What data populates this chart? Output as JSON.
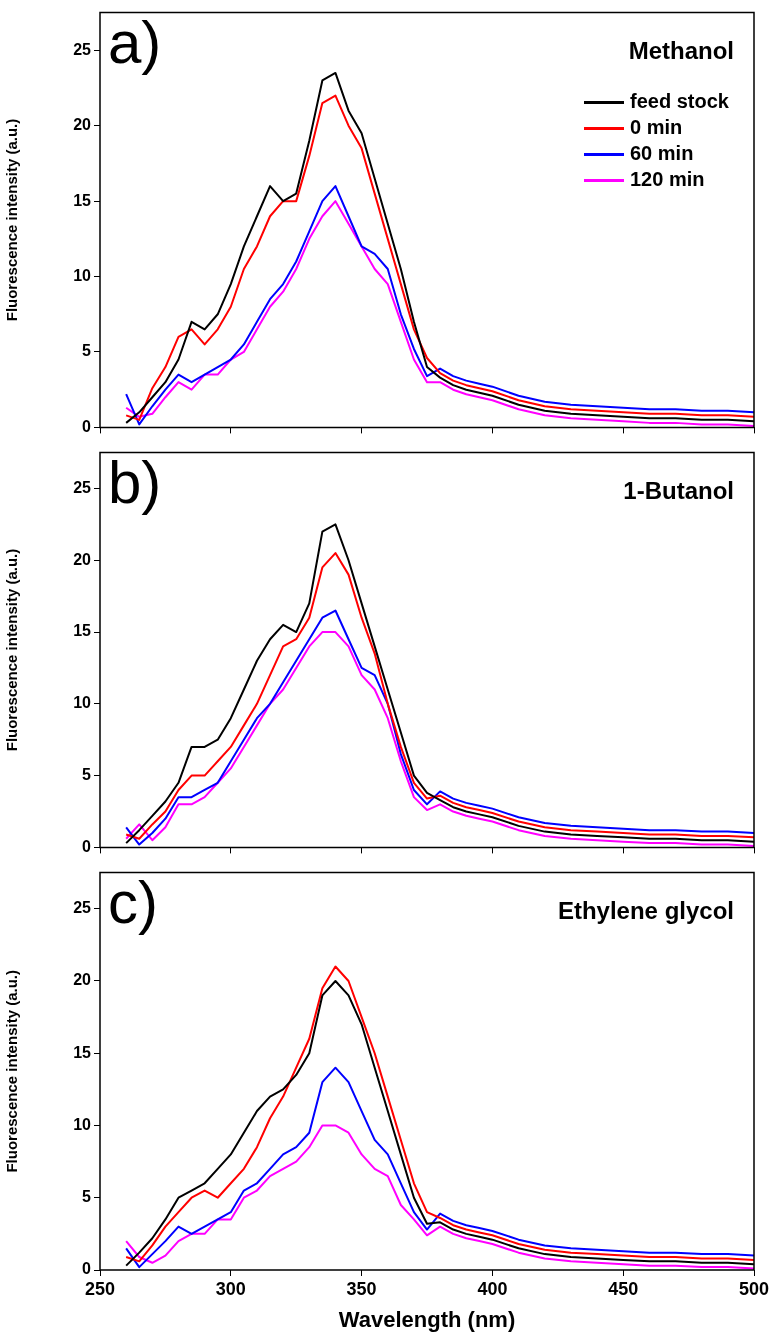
{
  "chart_data": [
    {
      "type": "line",
      "annotations": [
        "a)",
        "Methanol"
      ],
      "ylabel": "Fluorescence intensity (a.u.)",
      "legend": "top right",
      "tick_labels": "y",
      "line_style": "solid",
      "x": [
        260,
        265,
        270,
        275,
        280,
        285,
        290,
        295,
        300,
        305,
        310,
        315,
        320,
        325,
        330,
        335,
        340,
        345,
        350,
        355,
        360,
        365,
        370,
        375,
        380,
        385,
        390,
        395,
        400,
        410,
        420,
        430,
        440,
        450,
        460,
        470,
        480,
        490,
        500
      ],
      "xlim": [
        250,
        500
      ],
      "xticks": [
        250,
        300,
        350,
        400,
        450,
        500
      ],
      "ylim": [
        0,
        27.5
      ],
      "yticks": [
        0,
        5,
        10,
        15,
        20,
        25
      ],
      "series": [
        {
          "name": "feed stock",
          "color": "#000000",
          "values": [
            0.3,
            1,
            2,
            3,
            4.5,
            7,
            6.5,
            7.5,
            9.5,
            12,
            14,
            16,
            15,
            15.5,
            19,
            23,
            23.5,
            21,
            19.5,
            16.5,
            13.5,
            10.5,
            7,
            4,
            3.3,
            2.8,
            2.5,
            2.3,
            2.1,
            1.5,
            1.1,
            0.9,
            0.8,
            0.7,
            0.6,
            0.6,
            0.5,
            0.5,
            0.4
          ]
        },
        {
          "name": "0 min",
          "color": "#ff0000",
          "values": [
            0.8,
            0.5,
            2.6,
            4,
            6,
            6.5,
            5.5,
            6.5,
            8,
            10.5,
            12,
            14,
            15,
            15,
            18,
            21.5,
            22,
            20,
            18.5,
            15.5,
            12.5,
            9.5,
            6.5,
            4.6,
            3.6,
            3.1,
            2.8,
            2.6,
            2.4,
            1.8,
            1.4,
            1.2,
            1.1,
            1,
            0.9,
            0.9,
            0.8,
            0.8,
            0.7
          ]
        },
        {
          "name": "60 min",
          "color": "#0000ff",
          "values": [
            2.2,
            0.2,
            1.4,
            2.5,
            3.5,
            3,
            3.5,
            4,
            4.5,
            5.5,
            7,
            8.5,
            9.5,
            11,
            13,
            15,
            16,
            14,
            12,
            11.5,
            10.5,
            7.5,
            5.2,
            3.4,
            3.9,
            3.4,
            3.1,
            2.9,
            2.7,
            2.1,
            1.7,
            1.5,
            1.4,
            1.3,
            1.2,
            1.2,
            1.1,
            1.1,
            1
          ]
        },
        {
          "name": "120 min",
          "color": "#ff00ff",
          "values": [
            1.3,
            0.7,
            0.9,
            2,
            3,
            2.5,
            3.5,
            3.5,
            4.5,
            5,
            6.5,
            8,
            9,
            10.5,
            12.5,
            14,
            15,
            13.5,
            12,
            10.5,
            9.5,
            7,
            4.5,
            3,
            3,
            2.5,
            2.2,
            2,
            1.8,
            1.2,
            0.8,
            0.6,
            0.5,
            0.4,
            0.3,
            0.3,
            0.2,
            0.2,
            0.1
          ]
        }
      ]
    },
    {
      "type": "line",
      "annotations": [
        "b)",
        "1-Butanol"
      ],
      "ylabel": "Fluorescence intensity (a.u.)",
      "tick_labels": "y",
      "line_style": "solid",
      "x": [
        260,
        265,
        270,
        275,
        280,
        285,
        290,
        295,
        300,
        305,
        310,
        315,
        320,
        325,
        330,
        335,
        340,
        345,
        350,
        355,
        360,
        365,
        370,
        375,
        380,
        385,
        390,
        395,
        400,
        410,
        420,
        430,
        440,
        450,
        460,
        470,
        480,
        490,
        500
      ],
      "xlim": [
        250,
        500
      ],
      "xticks": [
        250,
        300,
        350,
        400,
        450,
        500
      ],
      "ylim": [
        0,
        27.5
      ],
      "yticks": [
        0,
        5,
        10,
        15,
        20,
        25
      ],
      "series": [
        {
          "color": "#000000",
          "values": [
            0.3,
            1.2,
            2.2,
            3.2,
            4.5,
            7,
            7,
            7.5,
            9,
            11,
            13,
            14.5,
            15.5,
            15,
            17,
            22,
            22.5,
            20,
            17,
            14,
            11,
            8,
            5,
            3.8,
            3.3,
            2.8,
            2.5,
            2.3,
            2.1,
            1.5,
            1.1,
            0.9,
            0.8,
            0.7,
            0.6,
            0.6,
            0.5,
            0.5,
            0.4
          ]
        },
        {
          "color": "#ff0000",
          "values": [
            0.9,
            0.6,
            1.6,
            2.5,
            4,
            5,
            5,
            6,
            7,
            8.5,
            10,
            12,
            14,
            14.5,
            16,
            19.5,
            20.5,
            19,
            16,
            13.5,
            10,
            7,
            4.5,
            3.4,
            3.6,
            3.1,
            2.8,
            2.6,
            2.4,
            1.8,
            1.4,
            1.2,
            1.1,
            1,
            0.9,
            0.9,
            0.8,
            0.8,
            0.7
          ]
        },
        {
          "color": "#0000ff",
          "values": [
            1.4,
            0.2,
            1,
            2,
            3.5,
            3.5,
            4,
            4.5,
            6,
            7.5,
            9,
            10,
            11.5,
            13,
            14.5,
            16,
            16.5,
            14.5,
            12.5,
            12,
            10,
            6.5,
            4,
            3,
            3.9,
            3.4,
            3.1,
            2.9,
            2.7,
            2.1,
            1.7,
            1.5,
            1.4,
            1.3,
            1.2,
            1.2,
            1.1,
            1.1,
            1
          ]
        },
        {
          "color": "#ff00ff",
          "values": [
            0.6,
            1.6,
            0.5,
            1.4,
            3,
            3,
            3.5,
            4.5,
            5.5,
            7,
            8.5,
            10,
            11,
            12.5,
            14,
            15,
            15,
            14,
            12,
            11,
            9,
            6,
            3.5,
            2.6,
            3,
            2.5,
            2.2,
            2,
            1.8,
            1.2,
            0.8,
            0.6,
            0.5,
            0.4,
            0.3,
            0.3,
            0.2,
            0.2,
            0.1
          ]
        }
      ]
    },
    {
      "type": "line",
      "annotations": [
        "c)",
        "Ethylene glycol"
      ],
      "xlabel": "Wavelength (nm)",
      "ylabel": "Fluorescence intensity (a.u.)",
      "line_style": "solid",
      "x": [
        260,
        265,
        270,
        275,
        280,
        285,
        290,
        295,
        300,
        305,
        310,
        315,
        320,
        325,
        330,
        335,
        340,
        345,
        350,
        355,
        360,
        365,
        370,
        375,
        380,
        385,
        390,
        395,
        400,
        410,
        420,
        430,
        440,
        450,
        460,
        470,
        480,
        490,
        500
      ],
      "xlim": [
        250,
        500
      ],
      "xticks": [
        250,
        300,
        350,
        400,
        450,
        500
      ],
      "ylim": [
        0,
        27.5
      ],
      "yticks": [
        0,
        5,
        10,
        15,
        20,
        25
      ],
      "series": [
        {
          "color": "#000000",
          "values": [
            0.3,
            1.2,
            2.2,
            3.5,
            5,
            5.5,
            6,
            7,
            8,
            9.5,
            11,
            12,
            12.5,
            13.5,
            15,
            19,
            20,
            19,
            17,
            14,
            11,
            8,
            5,
            3.2,
            3.3,
            2.8,
            2.5,
            2.3,
            2.1,
            1.5,
            1.1,
            0.9,
            0.8,
            0.7,
            0.6,
            0.6,
            0.5,
            0.5,
            0.4
          ]
        },
        {
          "color": "#ff0000",
          "values": [
            0.9,
            0.6,
            1.7,
            3,
            4,
            5,
            5.5,
            5,
            6,
            7,
            8.5,
            10.5,
            12,
            14,
            16,
            19.5,
            21,
            20,
            17.5,
            15,
            12,
            9,
            6,
            4,
            3.6,
            3.1,
            2.8,
            2.6,
            2.4,
            1.8,
            1.4,
            1.2,
            1.1,
            1,
            0.9,
            0.9,
            0.8,
            0.8,
            0.7
          ]
        },
        {
          "color": "#0000ff",
          "values": [
            1.5,
            0.2,
            1.1,
            2,
            3,
            2.5,
            3,
            3.5,
            4,
            5.5,
            6,
            7,
            8,
            8.5,
            9.5,
            13,
            14,
            13,
            11,
            9,
            8,
            6,
            4,
            2.8,
            3.9,
            3.4,
            3.1,
            2.9,
            2.7,
            2.1,
            1.7,
            1.5,
            1.4,
            1.3,
            1.2,
            1.2,
            1.1,
            1.1,
            1
          ]
        },
        {
          "color": "#ff00ff",
          "values": [
            2,
            0.9,
            0.5,
            1,
            2,
            2.5,
            2.5,
            3.5,
            3.5,
            5,
            5.5,
            6.5,
            7,
            7.5,
            8.5,
            10,
            10,
            9.5,
            8,
            7,
            6.5,
            4.5,
            3.5,
            2.4,
            3,
            2.5,
            2.2,
            2,
            1.8,
            1.2,
            0.8,
            0.6,
            0.5,
            0.4,
            0.3,
            0.3,
            0.2,
            0.2,
            0.1
          ]
        }
      ]
    }
  ]
}
